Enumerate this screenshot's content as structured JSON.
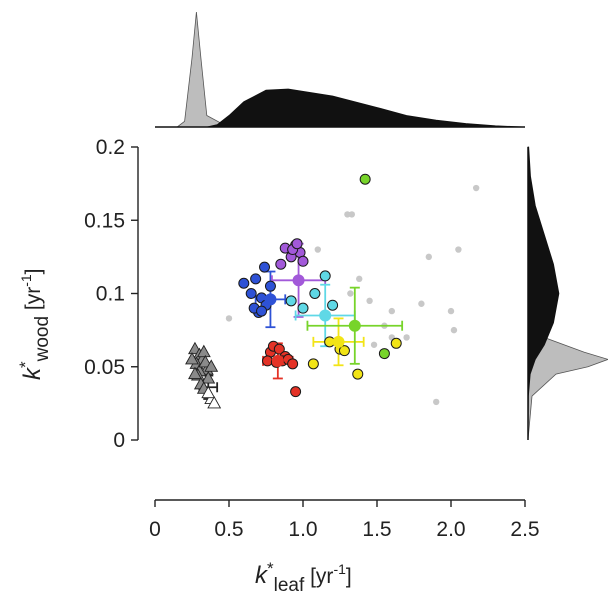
{
  "chart_data": {
    "type": "scatter",
    "title": "",
    "xlabel": {
      "base": "k",
      "star": "*",
      "sub": "leaf",
      "unit": " [yr",
      "exp": "-1",
      "close": "]"
    },
    "ylabel": {
      "base": "k",
      "star": "*",
      "sub": "wood",
      "unit": " [yr",
      "exp": "-1",
      "close": "]"
    },
    "xlim": [
      0,
      2.5
    ],
    "ylim": [
      0,
      0.2
    ],
    "x_ticks": [
      0,
      0.5,
      1.0,
      1.5,
      2.0,
      2.5
    ],
    "x_tick_labels": [
      "0",
      "0.5",
      "1.0",
      "1.5",
      "2.0",
      "2.5"
    ],
    "y_ticks": [
      0,
      0.05,
      0.1,
      0.15,
      0.2
    ],
    "y_tick_labels": [
      "0",
      "0.05",
      "0.1",
      "0.15",
      "0.2"
    ],
    "grid": false,
    "marginals": {
      "top": {
        "gray_peak_x": 0.28,
        "black_density": [
          [
            0.35,
            0
          ],
          [
            0.42,
            0.02
          ],
          [
            0.5,
            0.1
          ],
          [
            0.6,
            0.22
          ],
          [
            0.75,
            0.32
          ],
          [
            0.9,
            0.33
          ],
          [
            1.05,
            0.3
          ],
          [
            1.2,
            0.27
          ],
          [
            1.35,
            0.22
          ],
          [
            1.5,
            0.17
          ],
          [
            1.7,
            0.1
          ],
          [
            1.9,
            0.06
          ],
          [
            2.1,
            0.03
          ],
          [
            2.3,
            0.01
          ],
          [
            2.5,
            0
          ]
        ],
        "gray_density": [
          [
            0.15,
            0
          ],
          [
            0.2,
            0.05
          ],
          [
            0.25,
            0.6
          ],
          [
            0.28,
            1.0
          ],
          [
            0.31,
            0.6
          ],
          [
            0.35,
            0.1
          ],
          [
            0.45,
            0.03
          ],
          [
            0.6,
            0.02
          ],
          [
            0.75,
            0.01
          ],
          [
            0.9,
            0
          ]
        ]
      },
      "right": {
        "black_density": [
          [
            0,
            0
          ],
          [
            0.03,
            0.01
          ],
          [
            0.045,
            0.06
          ],
          [
            0.055,
            0.2
          ],
          [
            0.065,
            0.45
          ],
          [
            0.08,
            0.7
          ],
          [
            0.1,
            0.85
          ],
          [
            0.12,
            0.7
          ],
          [
            0.14,
            0.45
          ],
          [
            0.16,
            0.2
          ],
          [
            0.18,
            0.07
          ],
          [
            0.2,
            0.02
          ]
        ],
        "gray_density": [
          [
            0,
            0
          ],
          [
            0.03,
            0.05
          ],
          [
            0.045,
            0.35
          ],
          [
            0.05,
            0.75
          ],
          [
            0.055,
            1.0
          ],
          [
            0.06,
            0.7
          ],
          [
            0.07,
            0.2
          ],
          [
            0.08,
            0.05
          ],
          [
            0.1,
            0
          ]
        ]
      }
    },
    "background_points": [
      [
        0.5,
        0.083
      ],
      [
        1.1,
        0.13
      ],
      [
        1.3,
        0.154
      ],
      [
        1.33,
        0.154
      ],
      [
        1.32,
        0.1
      ],
      [
        1.38,
        0.11
      ],
      [
        1.45,
        0.095
      ],
      [
        1.6,
        0.088
      ],
      [
        1.7,
        0.07
      ],
      [
        1.8,
        0.093
      ],
      [
        1.85,
        0.125
      ],
      [
        2.05,
        0.13
      ],
      [
        2.17,
        0.172
      ],
      [
        2.0,
        0.088
      ],
      [
        2.02,
        0.075
      ],
      [
        1.9,
        0.026
      ],
      [
        1.55,
        0.078
      ],
      [
        1.6,
        0.07
      ],
      [
        1.48,
        0.065
      ]
    ],
    "groups": [
      {
        "color": "#2e52d6",
        "points": [
          [
            0.6,
            0.107
          ],
          [
            0.65,
            0.1
          ],
          [
            0.68,
            0.11
          ],
          [
            0.72,
            0.097
          ],
          [
            0.75,
            0.092
          ],
          [
            0.7,
            0.087
          ],
          [
            0.78,
            0.105
          ],
          [
            0.74,
            0.118
          ],
          [
            0.67,
            0.09
          ],
          [
            0.72,
            0.088
          ]
        ],
        "mean": [
          0.78,
          0.096
        ],
        "xerr": 0.1,
        "yerr": 0.019
      },
      {
        "color": "#a259d9",
        "points": [
          [
            0.88,
            0.131
          ],
          [
            0.92,
            0.125
          ],
          [
            0.95,
            0.133
          ],
          [
            0.98,
            0.128
          ],
          [
            1.0,
            0.122
          ],
          [
            0.93,
            0.13
          ],
          [
            0.96,
            0.134
          ],
          [
            0.85,
            0.12
          ]
        ],
        "mean": [
          0.97,
          0.109
        ],
        "xerr": 0.18,
        "yerr": 0.025
      },
      {
        "color": "#5fd8e6",
        "points": [
          [
            0.92,
            0.095
          ],
          [
            1.0,
            0.09
          ],
          [
            1.15,
            0.112
          ],
          [
            1.2,
            0.092
          ],
          [
            1.08,
            0.1
          ]
        ],
        "mean": [
          1.15,
          0.085
        ],
        "xerr": 0.2,
        "yerr": 0.021
      },
      {
        "color": "#e43226",
        "points": [
          [
            0.78,
            0.06
          ],
          [
            0.8,
            0.064
          ],
          [
            0.84,
            0.062
          ],
          [
            0.88,
            0.057
          ],
          [
            0.76,
            0.054
          ],
          [
            0.82,
            0.053
          ],
          [
            0.86,
            0.054
          ],
          [
            0.9,
            0.055
          ],
          [
            0.93,
            0.052
          ],
          [
            0.95,
            0.033
          ]
        ],
        "mean": [
          0.83,
          0.054
        ],
        "xerr": 0.1,
        "yerr": 0.012
      },
      {
        "color": "#f2e416",
        "points": [
          [
            1.18,
            0.067
          ],
          [
            1.25,
            0.062
          ],
          [
            1.28,
            0.061
          ],
          [
            1.37,
            0.045
          ],
          [
            1.63,
            0.066
          ],
          [
            1.07,
            0.052
          ]
        ],
        "mean": [
          1.24,
          0.067
        ],
        "xerr": 0.17,
        "yerr": 0.016
      },
      {
        "color": "#77d42a",
        "points": [
          [
            1.42,
            0.178
          ],
          [
            1.35,
            0.078
          ],
          [
            1.55,
            0.059
          ]
        ],
        "mean": [
          1.35,
          0.078
        ],
        "xerr": 0.32,
        "yerr": 0.026
      }
    ],
    "triangles": {
      "filled": [
        [
          0.27,
          0.062
        ],
        [
          0.3,
          0.058
        ],
        [
          0.32,
          0.055
        ],
        [
          0.28,
          0.052
        ],
        [
          0.33,
          0.06
        ],
        [
          0.35,
          0.048
        ],
        [
          0.3,
          0.047
        ],
        [
          0.25,
          0.055
        ],
        [
          0.34,
          0.053
        ],
        [
          0.29,
          0.044
        ],
        [
          0.36,
          0.042
        ],
        [
          0.31,
          0.038
        ],
        [
          0.33,
          0.035
        ],
        [
          0.38,
          0.05
        ],
        [
          0.27,
          0.045
        ]
      ],
      "open": [
        [
          0.38,
          0.028
        ],
        [
          0.36,
          0.032
        ],
        [
          0.4,
          0.025
        ]
      ],
      "mean": [
        0.36,
        0.036
      ],
      "xerr": 0.06,
      "yerr": 0.008
    }
  }
}
